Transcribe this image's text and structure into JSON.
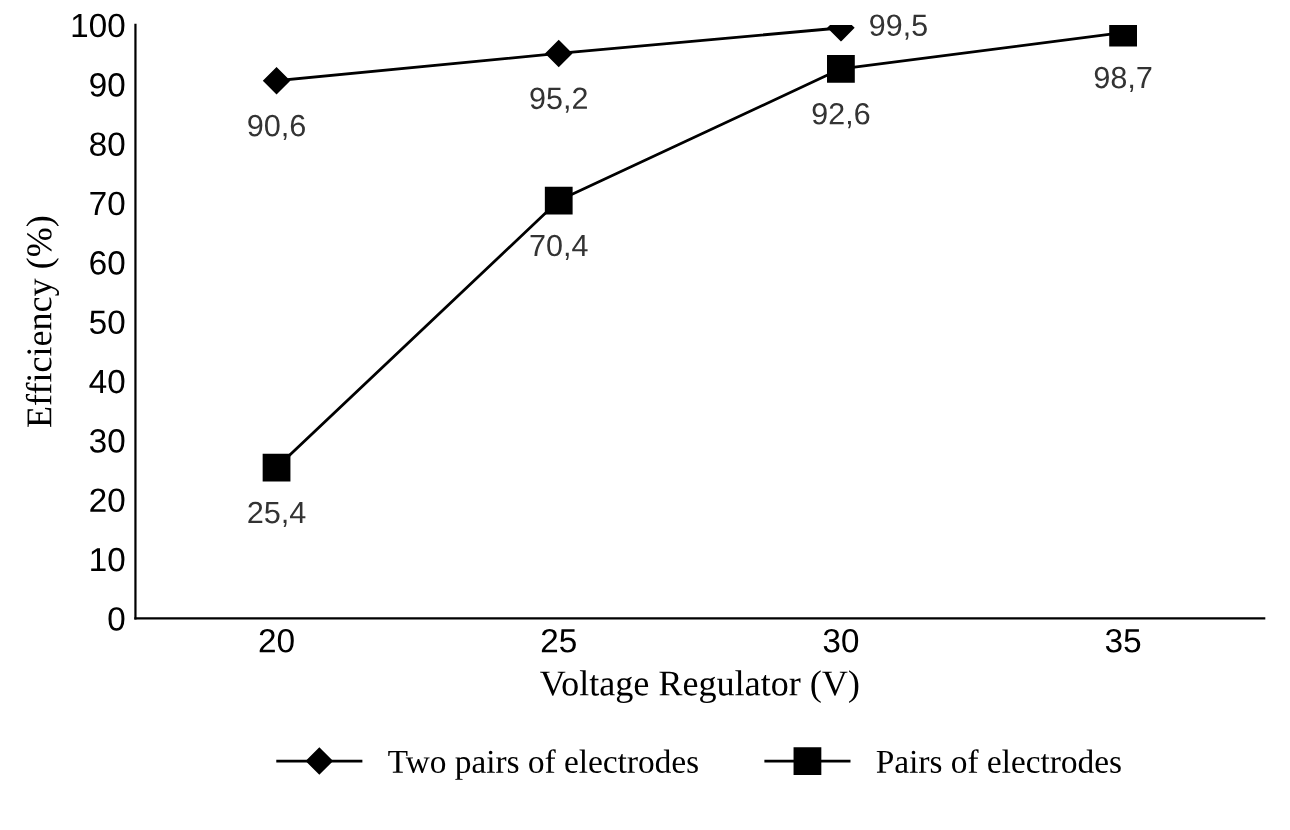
{
  "chart_data": {
    "type": "line",
    "xlabel": "Voltage Regulator (V)",
    "ylabel": "Efficiency (%)",
    "categories": [
      "20",
      "25",
      "30",
      "35"
    ],
    "series": [
      {
        "name": "Two pairs of electrodes",
        "color": "#000000",
        "marker": "diamond",
        "values": [
          90.6,
          95.2,
          99.5,
          null
        ],
        "value_labels": [
          "90,6",
          "95,2",
          "99,5",
          null
        ]
      },
      {
        "name": "Pairs of electrodes",
        "color": "#000000",
        "marker": "square",
        "values": [
          25.4,
          70.4,
          92.6,
          98.7
        ],
        "value_labels": [
          "25,4",
          "70,4",
          "92,6",
          "98,7"
        ]
      }
    ],
    "ylim": [
      0,
      100
    ],
    "yticks": [
      0,
      10,
      20,
      30,
      40,
      50,
      60,
      70,
      80,
      90,
      100
    ],
    "grid": false,
    "legend": "bottom"
  }
}
